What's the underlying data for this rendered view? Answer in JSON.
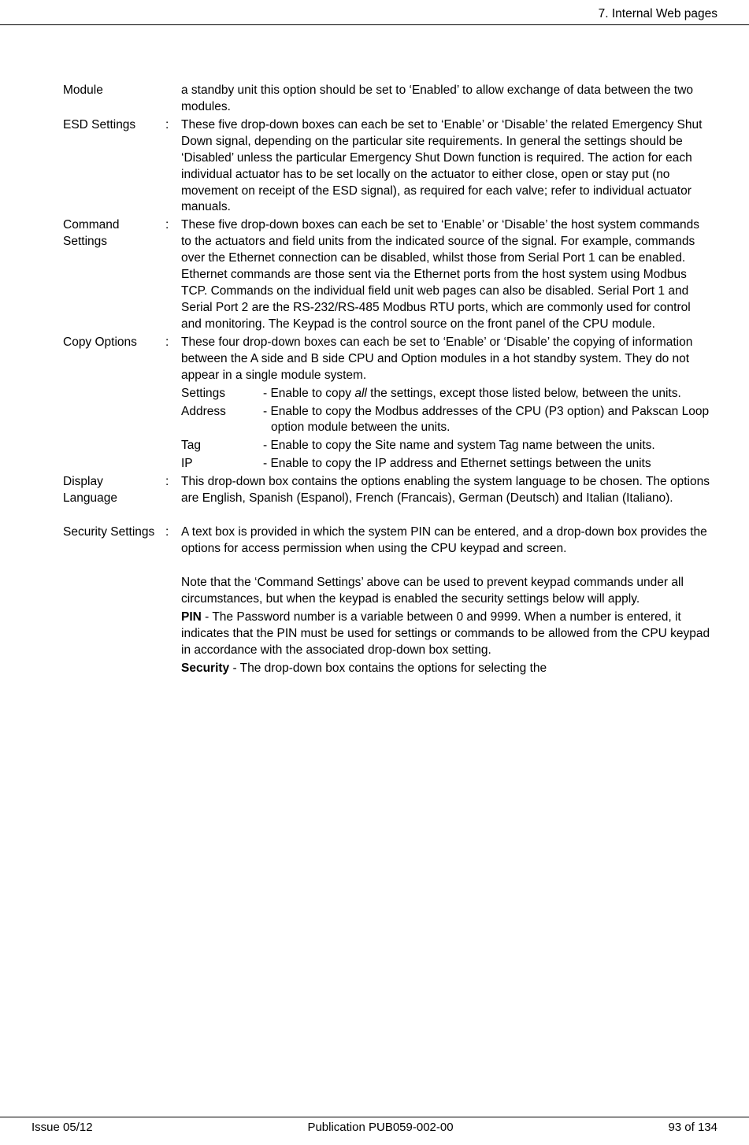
{
  "header": {
    "section_title": "7. Internal Web pages"
  },
  "footer": {
    "issue": "Issue 05/12",
    "publication": "Publication PUB059-002-00",
    "page": "93 of 134"
  },
  "items": {
    "module": {
      "term": "Module",
      "colon": "",
      "desc": "a standby unit this option should be set to ‘Enabled’ to allow exchange of data between the two modules."
    },
    "esd": {
      "term": "ESD Settings",
      "colon": ":",
      "desc": "These five drop-down boxes can each be set to ‘Enable’ or ‘Disable’ the related Emergency Shut Down signal, depending on the particular site requirements.  In general the settings should be ‘Disabled’ unless the particular Emergency Shut Down function is required. The action for each individual actuator has to be set locally on the actuator to either close, open or stay put (no movement on receipt of the ESD signal), as required for each valve; refer to individual actuator manuals."
    },
    "command": {
      "term": "Command Settings",
      "colon": ":",
      "desc": "These five drop-down boxes can each be set to ‘Enable’ or ‘Disable’ the host system commands to the actuators and field units from the indicated source of the signal. For example, commands over the Ethernet connection can be disabled, whilst those from Serial Port 1 can be enabled.  Ethernet commands are those sent via the Ethernet ports from the host system using Modbus TCP. Commands on the individual field unit web pages can also be disabled. Serial Port 1 and Serial Port 2 are the RS-232/RS-485 Modbus RTU ports, which are commonly used for control and monitoring.  The Keypad is the control source on the front panel of the CPU module."
    },
    "copy": {
      "term": "Copy Options",
      "colon": ":",
      "desc_intro": "These four drop-down boxes can each be set to ‘Enable’ or ‘Disable’ the copying of information between the A side and B side CPU and Option modules in a hot standby system. They do not appear in a single module system.",
      "sub": {
        "settings": {
          "term": "Settings",
          "desc_pre": "- Enable to copy ",
          "desc_italic": "all",
          "desc_post": " the settings, except those listed below, between the units."
        },
        "address": {
          "term": "Address",
          "desc": "- Enable to copy the Modbus addresses of the CPU (P3 option) and Pakscan Loop option module between the units."
        },
        "tag": {
          "term": "Tag",
          "desc": "- Enable to copy the Site name and system Tag name between the units."
        },
        "ip": {
          "term": "IP",
          "desc": "- Enable to copy the IP address and Ethernet settings between the units"
        }
      }
    },
    "display": {
      "term": "Display Language",
      "colon": ":",
      "desc": "This drop-down box contains the options enabling the system language to be chosen. The options are English, Spanish (Espanol), French (Francais), German (Deutsch) and Italian (Italiano)."
    },
    "security": {
      "term": "Security Settings",
      "colon": ":",
      "p1": "A text box is provided in which the system PIN can be entered, and a drop-down box provides the options for access permission when using the CPU keypad and screen.",
      "p2": "Note that the ‘Command Settings’ above can be used to prevent keypad commands under all circumstances, but when the keypad is enabled the security settings below will apply.",
      "pin_label": "PIN",
      "pin_desc": " - The Password number is a variable between 0 and 9999.  When a number is entered, it indicates that the PIN must be used for settings or commands to be allowed from the CPU keypad in accordance with the associated drop-down box setting.",
      "sec_label": "Security",
      "sec_desc": " - The drop-down box contains the options for selecting the"
    }
  }
}
